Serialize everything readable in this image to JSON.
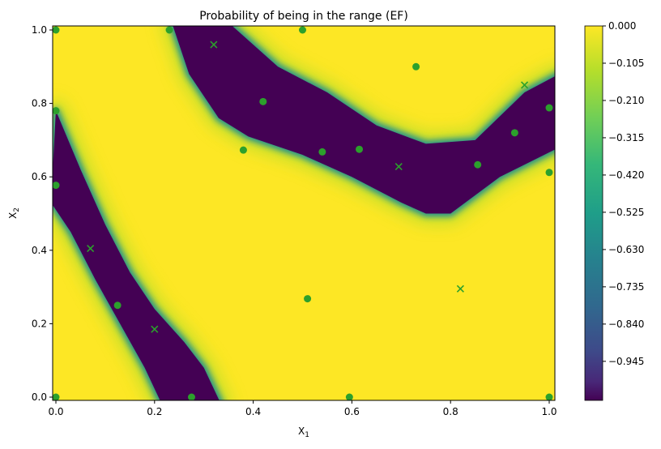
{
  "chart_data": {
    "type": "heatmap",
    "title": "Probability of being in the range (EF)",
    "xlabel": "X_1",
    "ylabel": "X_2",
    "xlim": [
      -0.007,
      1.01
    ],
    "ylim": [
      -0.01,
      1.01
    ],
    "xticks": [
      "0.0",
      "0.2",
      "0.4",
      "0.6",
      "0.8",
      "1.0"
    ],
    "yticks": [
      "0.0",
      "0.2",
      "0.4",
      "0.6",
      "0.8",
      "1.0"
    ],
    "colormap": "viridis",
    "colorbar": {
      "range": [
        -1.055,
        0.0
      ],
      "ticks": [
        "0.000",
        "−0.105",
        "−0.210",
        "−0.315",
        "−0.420",
        "−0.525",
        "−0.630",
        "−0.735",
        "−0.840",
        "−0.945"
      ]
    },
    "dark_regions": [
      [
        [
          0,
          0.78
        ],
        [
          0.05,
          0.62
        ],
        [
          0.1,
          0.47
        ],
        [
          0.15,
          0.34
        ],
        [
          0.2,
          0.24
        ],
        [
          0.26,
          0.15
        ],
        [
          0.3,
          0.08
        ],
        [
          0.335,
          -0.02
        ],
        [
          0.215,
          -0.02
        ],
        [
          0.18,
          0.08
        ],
        [
          0.13,
          0.2
        ],
        [
          0.08,
          0.32
        ],
        [
          0.03,
          0.45
        ],
        [
          -0.01,
          0.53
        ]
      ],
      [
        [
          0.235,
          1.02
        ],
        [
          0.35,
          1.02
        ],
        [
          0.45,
          0.9
        ],
        [
          0.55,
          0.83
        ],
        [
          0.65,
          0.74
        ],
        [
          0.75,
          0.69
        ],
        [
          0.85,
          0.7
        ],
        [
          0.95,
          0.83
        ],
        [
          1.02,
          0.88
        ],
        [
          1.02,
          0.68
        ],
        [
          0.9,
          0.6
        ],
        [
          0.8,
          0.5
        ],
        [
          0.75,
          0.5
        ],
        [
          0.7,
          0.53
        ],
        [
          0.6,
          0.6
        ],
        [
          0.5,
          0.66
        ],
        [
          0.39,
          0.71
        ],
        [
          0.33,
          0.76
        ],
        [
          0.27,
          0.88
        ]
      ]
    ],
    "circle_points": [
      [
        0,
        1.0
      ],
      [
        0.23,
        1.0
      ],
      [
        0.5,
        1.0
      ],
      [
        0.73,
        0.9
      ],
      [
        0,
        0.78
      ],
      [
        0.42,
        0.805
      ],
      [
        0.38,
        0.673
      ],
      [
        0.54,
        0.668
      ],
      [
        0.615,
        0.675
      ],
      [
        0.855,
        0.633
      ],
      [
        0.93,
        0.72
      ],
      [
        1.0,
        0.788
      ],
      [
        1.0,
        0.612
      ],
      [
        0,
        0.577
      ],
      [
        0.125,
        0.25
      ],
      [
        0.51,
        0.268
      ],
      [
        0,
        0
      ],
      [
        0.275,
        0
      ],
      [
        0.595,
        0
      ],
      [
        1.0,
        0
      ]
    ],
    "cross_points": [
      [
        0.32,
        0.96
      ],
      [
        0.95,
        0.85
      ],
      [
        0.695,
        0.628
      ],
      [
        0.07,
        0.405
      ],
      [
        0.82,
        0.295
      ],
      [
        0.2,
        0.185
      ]
    ],
    "marker_color": "#2ca02c",
    "background_color": "#fde725",
    "min_color": "#440154"
  }
}
